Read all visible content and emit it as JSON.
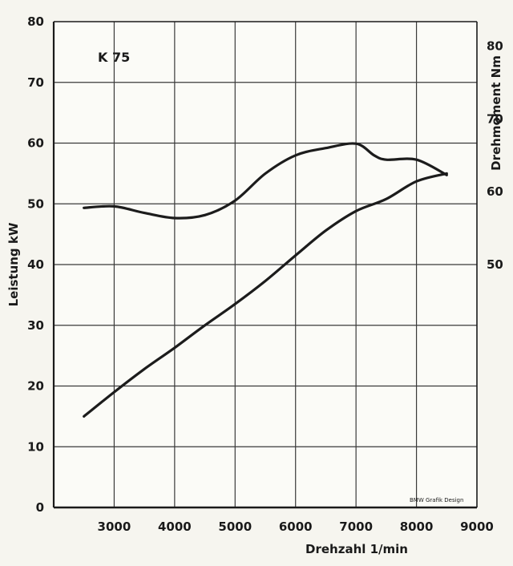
{
  "chart_data": {
    "type": "line",
    "annotation": "K 75",
    "xlabel": "Drehzahl 1/min",
    "ylabel_left": "Leistung kW",
    "ylabel_right": "Drehmoment Nm",
    "credit": "BMW Grafik Design",
    "xlim": [
      2000,
      9000
    ],
    "ylim_left": [
      0,
      80
    ],
    "x_ticks": [
      "3000",
      "4000",
      "5000",
      "6000",
      "7000",
      "8000",
      "9000"
    ],
    "y_ticks_left": [
      "0",
      "10",
      "20",
      "30",
      "40",
      "50",
      "60",
      "70",
      "80"
    ],
    "y_ticks_right": [
      "50",
      "60",
      "70",
      "80"
    ],
    "right_axis_map": {
      "value_at_left_0": 16.7,
      "value_per_left_unit": 0.833
    },
    "grid": true,
    "series": [
      {
        "axis": "left",
        "x": [
          2500,
          3000,
          3500,
          4000,
          4500,
          5000,
          5500,
          6000,
          6500,
          7000,
          7500,
          8000,
          8500
        ],
        "values": [
          15,
          19,
          22.8,
          26.3,
          30,
          33.5,
          37.3,
          41.5,
          45.6,
          48.8,
          50.8,
          53.7,
          55
        ]
      },
      {
        "axis": "right",
        "x": [
          2500,
          3000,
          3500,
          4000,
          4500,
          5000,
          5500,
          6000,
          6500,
          7000,
          7300,
          7500,
          8000,
          8500
        ],
        "values": [
          57.8,
          58.0,
          57.1,
          56.4,
          56.8,
          58.8,
          62.5,
          65.0,
          66.0,
          66.6,
          65.0,
          64.4,
          64.4,
          62.3
        ]
      }
    ]
  }
}
